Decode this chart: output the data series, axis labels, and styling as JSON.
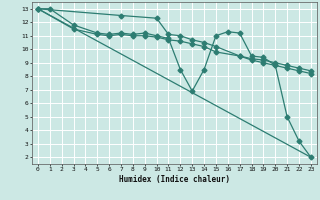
{
  "xlabel": "Humidex (Indice chaleur)",
  "bg_color": "#cce8e4",
  "grid_color": "#ffffff",
  "line_color": "#2d7d72",
  "xlim": [
    -0.5,
    23.5
  ],
  "ylim": [
    1.5,
    13.5
  ],
  "xtick_labels": [
    "0",
    "1",
    "2",
    "3",
    "4",
    "5",
    "6",
    "7",
    "8",
    "9",
    "10",
    "11",
    "12",
    "13",
    "14",
    "15",
    "16",
    "17",
    "18",
    "19",
    "20",
    "21",
    "22",
    "23"
  ],
  "xtick_vals": [
    0,
    1,
    2,
    3,
    4,
    5,
    6,
    7,
    8,
    9,
    10,
    11,
    12,
    13,
    14,
    15,
    16,
    17,
    18,
    19,
    20,
    21,
    22,
    23
  ],
  "ytick_vals": [
    2,
    3,
    4,
    5,
    6,
    7,
    8,
    9,
    10,
    11,
    12,
    13
  ],
  "line1_x": [
    0,
    1,
    3,
    5,
    6,
    7,
    8,
    9,
    10,
    11,
    12,
    13,
    14,
    15,
    16,
    17,
    18,
    19,
    20,
    21,
    22,
    23
  ],
  "line1_y": [
    13,
    13,
    11.8,
    11.2,
    11.1,
    11.2,
    11.1,
    11.2,
    11.0,
    10.8,
    8.5,
    6.9,
    8.5,
    11.0,
    11.3,
    11.2,
    9.5,
    9.4,
    8.8,
    5.0,
    3.2,
    2.0
  ],
  "line2_x": [
    0,
    3,
    5,
    6,
    7,
    8,
    9,
    10,
    11,
    12,
    13,
    14,
    15,
    17,
    18,
    19,
    20,
    21,
    22,
    23
  ],
  "line2_y": [
    13,
    11.5,
    11.1,
    11.0,
    11.1,
    11.0,
    11.0,
    10.9,
    10.7,
    10.6,
    10.4,
    10.2,
    9.8,
    9.5,
    9.3,
    9.2,
    9.0,
    8.8,
    8.6,
    8.4
  ],
  "line3_x": [
    0,
    7,
    10,
    11,
    12,
    13,
    14,
    15,
    17,
    18,
    19,
    20,
    21,
    22,
    23
  ],
  "line3_y": [
    13,
    12.5,
    12.3,
    11.1,
    11.0,
    10.7,
    10.5,
    10.2,
    9.5,
    9.2,
    9.0,
    8.8,
    8.6,
    8.4,
    8.2
  ],
  "line4_x": [
    0,
    23
  ],
  "line4_y": [
    13,
    2
  ],
  "marker_size": 2.5,
  "lw": 0.9
}
